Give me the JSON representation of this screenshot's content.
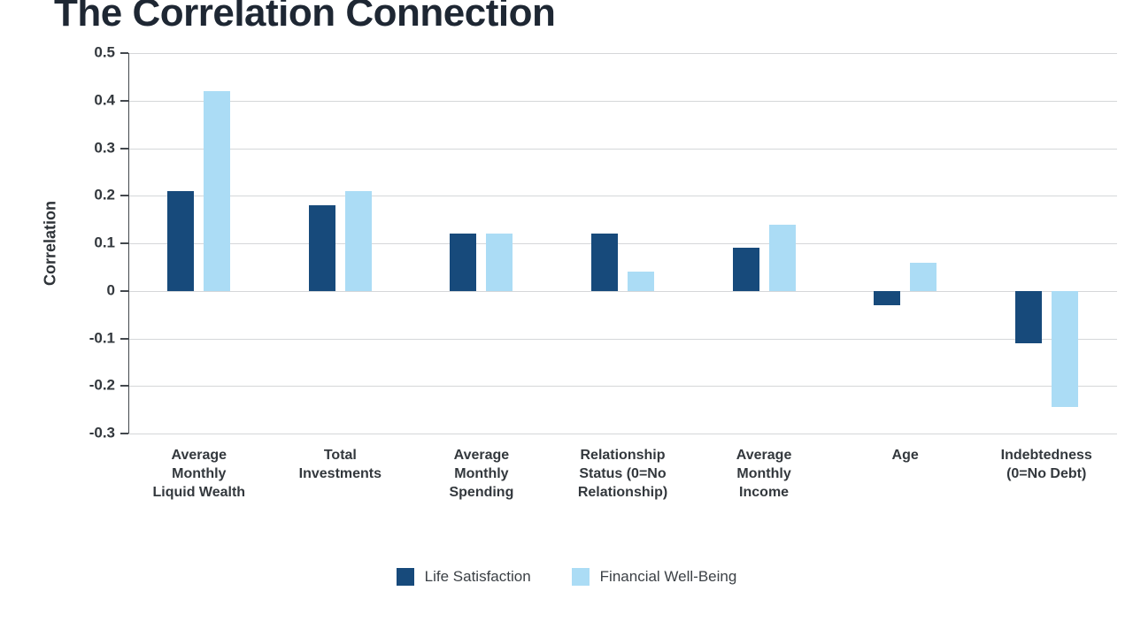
{
  "title": "The Correlation Connection",
  "chart_data": {
    "type": "bar",
    "title": "The Correlation Connection",
    "xlabel": "",
    "ylabel": "Correlation",
    "ylim": [
      -0.3,
      0.5
    ],
    "yticks": [
      0.5,
      0.4,
      0.3,
      0.2,
      0.1,
      0,
      -0.1,
      -0.2,
      -0.3
    ],
    "grid": true,
    "legend_position": "bottom",
    "categories": [
      "Average Monthly Liquid Wealth",
      "Total Investments",
      "Average Monthly Spending",
      "Relationship Status (0=No Relationship)",
      "Average Monthly Income",
      "Age",
      "Indebtedness (0=No Debt)"
    ],
    "category_lines": [
      [
        "Average",
        "Monthly",
        "Liquid Wealth"
      ],
      [
        "Total",
        "Investments"
      ],
      [
        "Average",
        "Monthly",
        "Spending"
      ],
      [
        "Relationship",
        "Status (0=No",
        "Relationship)"
      ],
      [
        "Average",
        "Monthly",
        "Income"
      ],
      [
        "Age"
      ],
      [
        "Indebtedness",
        "(0=No Debt)"
      ]
    ],
    "series": [
      {
        "name": "Life Satisfaction",
        "color": "#174A7B",
        "values": [
          0.21,
          0.18,
          0.12,
          0.12,
          0.09,
          -0.03,
          -0.11
        ]
      },
      {
        "name": "Financial Well-Being",
        "color": "#ABDCF5",
        "values": [
          0.42,
          0.21,
          0.12,
          0.04,
          0.14,
          0.06,
          -0.245
        ]
      }
    ]
  }
}
